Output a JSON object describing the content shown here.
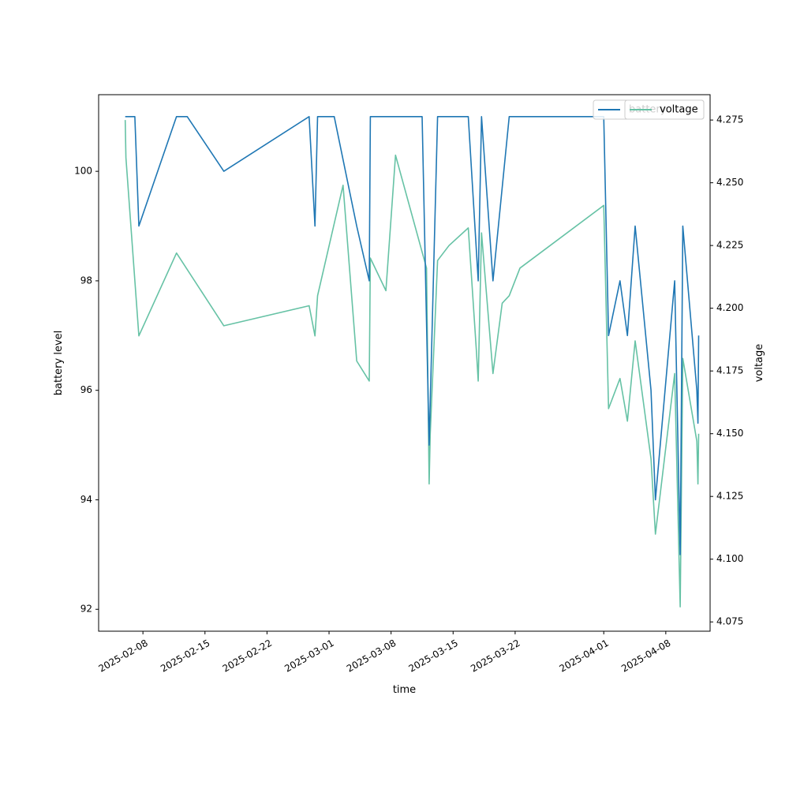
{
  "chart_data": {
    "type": "line",
    "xlabel": "time",
    "ylabel_left": "battery level",
    "ylabel_right": "voltage",
    "x_ticks": [
      "2025-02-08",
      "2025-02-15",
      "2025-02-22",
      "2025-03-01",
      "2025-03-08",
      "2025-03-15",
      "2025-03-22",
      "2025-04-01",
      "2025-04-08"
    ],
    "y_left_ticks": [
      "92",
      "94",
      "96",
      "98",
      "100"
    ],
    "y_right_ticks": [
      "4.075",
      "4.100",
      "4.125",
      "4.150",
      "4.175",
      "4.200",
      "4.225",
      "4.250",
      "4.275"
    ],
    "x_range": [
      "2025-02-03",
      "2025-04-13"
    ],
    "ylim_left": [
      91.6,
      101.4
    ],
    "ylim_right": [
      4.0713,
      4.2851
    ],
    "legend_position": "top-right",
    "series": [
      {
        "name": "battery",
        "axis": "left",
        "color": "#1f77b4",
        "points": [
          [
            "2025-02-06 00:00",
            101
          ],
          [
            "2025-02-07 02:00",
            101
          ],
          [
            "2025-02-07 13:00",
            99
          ],
          [
            "2025-02-11 19:00",
            101
          ],
          [
            "2025-02-13 00:00",
            101
          ],
          [
            "2025-02-17 03:00",
            100
          ],
          [
            "2025-02-26 18:00",
            101
          ],
          [
            "2025-02-27 10:00",
            99
          ],
          [
            "2025-02-27 17:00",
            101
          ],
          [
            "2025-02-29 14:00",
            101
          ],
          [
            "2025-03-04 03:00",
            99
          ],
          [
            "2025-03-05 13:00",
            98
          ],
          [
            "2025-03-05 16:00",
            101
          ],
          [
            "2025-03-11 12:00",
            101
          ],
          [
            "2025-03-12 07:00",
            95
          ],
          [
            "2025-03-13 06:00",
            101
          ],
          [
            "2025-03-16 17:00",
            101
          ],
          [
            "2025-03-17 20:00",
            98
          ],
          [
            "2025-03-18 05:00",
            101
          ],
          [
            "2025-03-19 12:00",
            98
          ],
          [
            "2025-03-21 08:00",
            101
          ],
          [
            "2025-04-01 00:00",
            101
          ],
          [
            "2025-04-01 13:00",
            97
          ],
          [
            "2025-04-02 20:00",
            98
          ],
          [
            "2025-04-03 16:00",
            97
          ],
          [
            "2025-04-04 13:00",
            99
          ],
          [
            "2025-04-06 08:00",
            96
          ],
          [
            "2025-04-06 20:00",
            94
          ],
          [
            "2025-04-09 00:00",
            98
          ],
          [
            "2025-04-09 15:00",
            93
          ],
          [
            "2025-04-09 22:00",
            99
          ],
          [
            "2025-04-11 12:00",
            96
          ],
          [
            "2025-04-11 15:00",
            95.4
          ],
          [
            "2025-04-11 17:00",
            97
          ]
        ]
      },
      {
        "name": "voltage",
        "axis": "right",
        "color": "#66c2a5",
        "points": [
          [
            "2025-02-06 00:00",
            4.275
          ],
          [
            "2025-02-06 02:00",
            4.26
          ],
          [
            "2025-02-07 13:00",
            4.189
          ],
          [
            "2025-02-11 19:00",
            4.222
          ],
          [
            "2025-02-17 03:00",
            4.193
          ],
          [
            "2025-02-26 18:00",
            4.201
          ],
          [
            "2025-02-27 10:00",
            4.189
          ],
          [
            "2025-02-27 17:00",
            4.205
          ],
          [
            "2025-03-02 14:00",
            4.249
          ],
          [
            "2025-03-04 03:00",
            4.179
          ],
          [
            "2025-03-05 13:00",
            4.171
          ],
          [
            "2025-03-05 16:00",
            4.22
          ],
          [
            "2025-03-07 10:00",
            4.207
          ],
          [
            "2025-03-08 12:00",
            4.261
          ],
          [
            "2025-03-12 00:00",
            4.216
          ],
          [
            "2025-03-12 07:00",
            4.13
          ],
          [
            "2025-03-12 10:00",
            4.15
          ],
          [
            "2025-03-13 06:00",
            4.219
          ],
          [
            "2025-03-14 13:00",
            4.225
          ],
          [
            "2025-03-16 17:00",
            4.232
          ],
          [
            "2025-03-17 15:00",
            4.183
          ],
          [
            "2025-03-17 20:00",
            4.171
          ],
          [
            "2025-03-18 05:00",
            4.23
          ],
          [
            "2025-03-19 12:00",
            4.174
          ],
          [
            "2025-03-20 13:00",
            4.202
          ],
          [
            "2025-03-21 08:00",
            4.205
          ],
          [
            "2025-03-22 13:00",
            4.216
          ],
          [
            "2025-04-01 00:00",
            4.241
          ],
          [
            "2025-04-01 13:00",
            4.16
          ],
          [
            "2025-04-02 20:00",
            4.172
          ],
          [
            "2025-04-03 16:00",
            4.155
          ],
          [
            "2025-04-04 13:00",
            4.187
          ],
          [
            "2025-04-06 08:00",
            4.14
          ],
          [
            "2025-04-06 20:00",
            4.11
          ],
          [
            "2025-04-09 00:00",
            4.174
          ],
          [
            "2025-04-09 15:00",
            4.081
          ],
          [
            "2025-04-09 22:00",
            4.18
          ],
          [
            "2025-04-11 12:00",
            4.147
          ],
          [
            "2025-04-11 15:00",
            4.13
          ],
          [
            "2025-04-11 17:00",
            4.15
          ]
        ]
      }
    ]
  }
}
